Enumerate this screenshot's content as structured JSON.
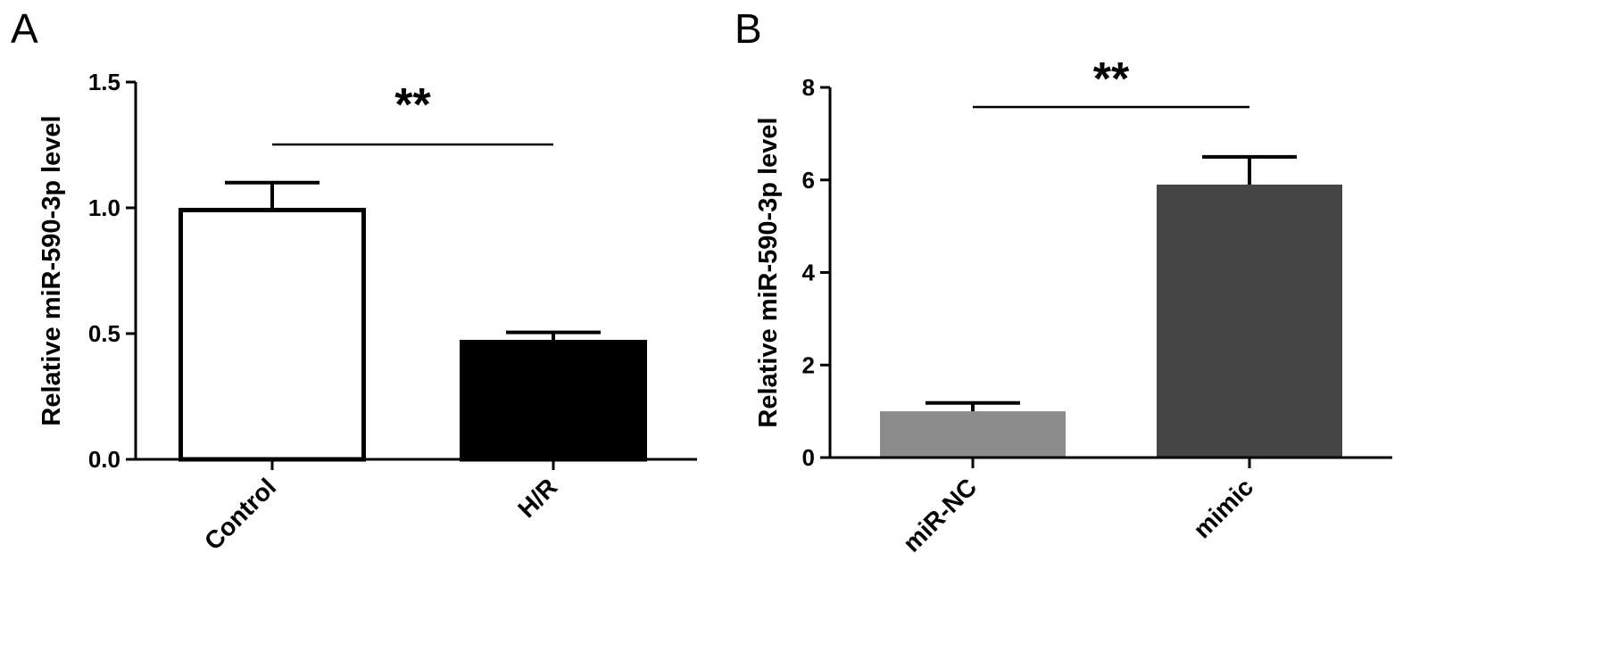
{
  "chart_data": [
    {
      "panel_label": "A",
      "type": "bar",
      "categories": [
        "Control",
        "H/R"
      ],
      "values": [
        1.0,
        0.475
      ],
      "errors": [
        0.1,
        0.03
      ],
      "bar_fill": [
        "#ffffff",
        "#000000"
      ],
      "bar_stroke": "#000000",
      "ylabel": "Relative miR-590-3p level",
      "ylim": [
        0,
        1.5
      ],
      "yticks": [
        "0.0",
        "0.5",
        "1.0",
        "1.5"
      ],
      "significance": "**",
      "grid": false
    },
    {
      "panel_label": "B",
      "type": "bar",
      "categories": [
        "miR-NC",
        "mimic"
      ],
      "values": [
        1.0,
        5.9
      ],
      "errors": [
        0.18,
        0.6
      ],
      "bar_fill": [
        "#8c8c8c",
        "#454545"
      ],
      "bar_stroke": "none",
      "ylabel": "Relative miR-590-3p level",
      "ylim": [
        0,
        8
      ],
      "yticks": [
        "0",
        "2",
        "4",
        "6",
        "8"
      ],
      "significance": "**",
      "grid": false
    }
  ]
}
